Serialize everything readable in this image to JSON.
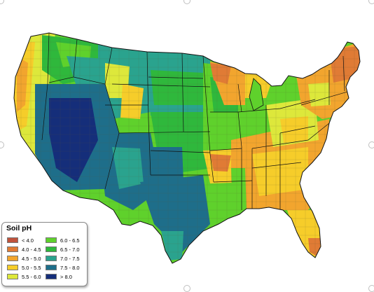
{
  "legend": {
    "title": "Soil pH",
    "classes": [
      {
        "label": "< 4.0",
        "color": "#c0533d"
      },
      {
        "label": "4.0 - 4.5",
        "color": "#e07b35"
      },
      {
        "label": "4.5 - 5.0",
        "color": "#f2a52e"
      },
      {
        "label": "5.0 - 5.5",
        "color": "#f6cd2a"
      },
      {
        "label": "5.5 - 6.0",
        "color": "#dde83b"
      },
      {
        "label": "6.0 - 6.5",
        "color": "#5fd12c"
      },
      {
        "label": "6.5 - 7.0",
        "color": "#2fb83c"
      },
      {
        "label": "7.0 - 7.5",
        "color": "#2aa38e"
      },
      {
        "label": "7.5 - 8.0",
        "color": "#1e6e8a"
      },
      {
        "label": "> 8.0",
        "color": "#152e7a"
      }
    ]
  },
  "map": {
    "outline_color": "#111111",
    "county_line_color": "#5a5a3a"
  }
}
